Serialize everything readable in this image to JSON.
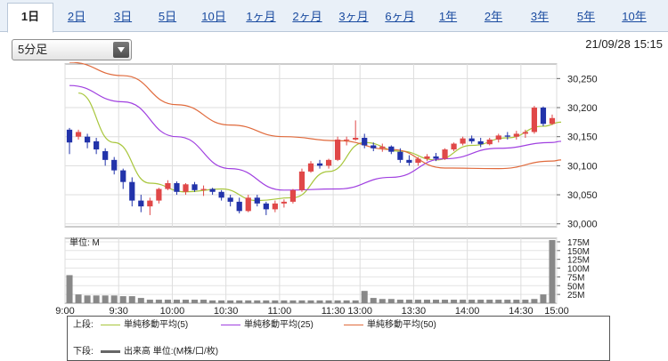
{
  "tabs": [
    {
      "label": "1日",
      "active": true
    },
    {
      "label": "2日"
    },
    {
      "label": "3日"
    },
    {
      "label": "5日"
    },
    {
      "label": "10日"
    },
    {
      "label": "1ヶ月"
    },
    {
      "label": "2ヶ月"
    },
    {
      "label": "3ヶ月"
    },
    {
      "label": "6ヶ月"
    },
    {
      "label": "1年"
    },
    {
      "label": "2年"
    },
    {
      "label": "3年"
    },
    {
      "label": "5年"
    },
    {
      "label": "10年"
    }
  ],
  "interval_select": {
    "value": "5分足"
  },
  "timestamp": "21/09/28 15:15",
  "chart_data": [
    {
      "type": "candlestick",
      "x_ticks": [
        "9:00",
        "9:30",
        "10:00",
        "10:30",
        "11:00",
        "11:30",
        "13:00",
        "13:30",
        "14:00",
        "14:30",
        "15:00"
      ],
      "y_ticks": [
        "30,000",
        "30,050",
        "30,100",
        "30,150",
        "30,200",
        "30,250"
      ],
      "ylim": [
        29995,
        30275
      ],
      "colors": {
        "up": "#e04848",
        "down": "#2233aa"
      },
      "candles": [
        [
          30162,
          30165,
          30120,
          30140
        ],
        [
          30150,
          30162,
          30145,
          30158
        ],
        [
          30150,
          30155,
          30130,
          30140
        ],
        [
          30142,
          30148,
          30120,
          30128
        ],
        [
          30125,
          30130,
          30100,
          30110
        ],
        [
          30110,
          30115,
          30085,
          30092
        ],
        [
          30092,
          30095,
          30060,
          30072
        ],
        [
          30072,
          30080,
          30030,
          30040
        ],
        [
          30040,
          30050,
          30020,
          30030
        ],
        [
          30030,
          30045,
          30015,
          30040
        ],
        [
          30040,
          30062,
          30035,
          30060
        ],
        [
          30060,
          30075,
          30058,
          30070
        ],
        [
          30070,
          30073,
          30050,
          30055
        ],
        [
          30055,
          30070,
          30050,
          30068
        ],
        [
          30068,
          30072,
          30055,
          30058
        ],
        [
          30058,
          30066,
          30048,
          30060
        ],
        [
          30060,
          30062,
          30050,
          30055
        ],
        [
          30055,
          30058,
          30040,
          30045
        ],
        [
          30045,
          30050,
          30030,
          30038
        ],
        [
          30038,
          30045,
          30018,
          30022
        ],
        [
          30022,
          30050,
          30020,
          30045
        ],
        [
          30045,
          30050,
          30030,
          30035
        ],
        [
          30035,
          30038,
          30015,
          30025
        ],
        [
          30025,
          30040,
          30020,
          30035
        ],
        [
          30035,
          30042,
          30028,
          30038
        ],
        [
          30038,
          30060,
          30035,
          30058
        ],
        [
          30058,
          30095,
          30055,
          30090
        ],
        [
          30090,
          30108,
          30088,
          30104
        ],
        [
          30104,
          30110,
          30095,
          30100
        ],
        [
          30100,
          30112,
          30095,
          30110
        ],
        [
          30110,
          30150,
          30108,
          30145
        ],
        [
          30145,
          30150,
          30135,
          30145
        ],
        [
          30145,
          30178,
          30143,
          30148
        ],
        [
          30148,
          30155,
          30130,
          30135
        ],
        [
          30135,
          30140,
          30125,
          30130
        ],
        [
          30130,
          30138,
          30124,
          30133
        ],
        [
          30133,
          30135,
          30120,
          30124
        ],
        [
          30124,
          30130,
          30105,
          30110
        ],
        [
          30110,
          30118,
          30100,
          30105
        ],
        [
          30105,
          30115,
          30100,
          30112
        ],
        [
          30112,
          30120,
          30108,
          30116
        ],
        [
          30116,
          30122,
          30108,
          30112
        ],
        [
          30112,
          30130,
          30110,
          30128
        ],
        [
          30128,
          30140,
          30125,
          30138
        ],
        [
          30138,
          30150,
          30135,
          30147
        ],
        [
          30147,
          30152,
          30138,
          30142
        ],
        [
          30142,
          30148,
          30132,
          30137
        ],
        [
          30137,
          30148,
          30135,
          30145
        ],
        [
          30145,
          30155,
          30140,
          30152
        ],
        [
          30152,
          30158,
          30145,
          30150
        ],
        [
          30150,
          30160,
          30145,
          30155
        ],
        [
          30155,
          30162,
          30148,
          30158
        ],
        [
          30158,
          30203,
          30155,
          30200
        ],
        [
          30200,
          30202,
          30168,
          30172
        ],
        [
          30172,
          30188,
          30170,
          30182
        ]
      ],
      "series": [
        {
          "name": "単純移動平均(5)",
          "color": "#a8c63c",
          "x": [
            1,
            5,
            9,
            13,
            17,
            21,
            25,
            29,
            33,
            37,
            41,
            45,
            49,
            53,
            55
          ],
          "y": [
            30225,
            30140,
            30070,
            30055,
            30060,
            30040,
            30045,
            30090,
            30140,
            30125,
            30110,
            30135,
            30148,
            30168,
            30175
          ]
        },
        {
          "name": "単純移動平均(25)",
          "color": "#a040e0",
          "x": [
            0,
            6,
            12,
            18,
            24,
            30,
            36,
            42,
            48,
            54,
            55
          ],
          "y": [
            30238,
            30210,
            30150,
            30095,
            30058,
            30060,
            30080,
            30112,
            30130,
            30140,
            30142
          ]
        },
        {
          "name": "単純移動平均(50)",
          "color": "#e06a3c",
          "x": [
            0,
            6,
            12,
            18,
            24,
            30,
            36,
            42,
            48,
            54,
            55
          ],
          "y": [
            30278,
            30255,
            30205,
            30170,
            30150,
            30143,
            30128,
            30096,
            30095,
            30108,
            30110
          ]
        }
      ]
    },
    {
      "type": "bar",
      "ylabel": "単位: M",
      "y_ticks": [
        "25M",
        "50M",
        "75M",
        "100M",
        "125M",
        "150M",
        "175M"
      ],
      "ylim": [
        0,
        185
      ],
      "color": "#888888",
      "values": [
        80,
        25,
        22,
        22,
        22,
        22,
        20,
        20,
        15,
        10,
        10,
        10,
        10,
        10,
        10,
        10,
        8,
        8,
        8,
        8,
        8,
        8,
        8,
        8,
        8,
        8,
        8,
        8,
        8,
        8,
        8,
        8,
        8,
        35,
        15,
        12,
        12,
        10,
        10,
        10,
        10,
        10,
        10,
        10,
        10,
        10,
        10,
        10,
        10,
        10,
        10,
        10,
        12,
        25,
        180
      ]
    }
  ],
  "legend": {
    "upper_label": "上段:",
    "lower_label": "下段:",
    "items": [
      {
        "label": "単純移動平均(5)",
        "color": "#a8c63c"
      },
      {
        "label": "単純移動平均(25)",
        "color": "#a040e0"
      },
      {
        "label": "単純移動平均(50)",
        "color": "#e06a3c"
      }
    ],
    "volume": {
      "label": "出来高 単位:(M株/口/枚)",
      "color": "#666666"
    }
  }
}
